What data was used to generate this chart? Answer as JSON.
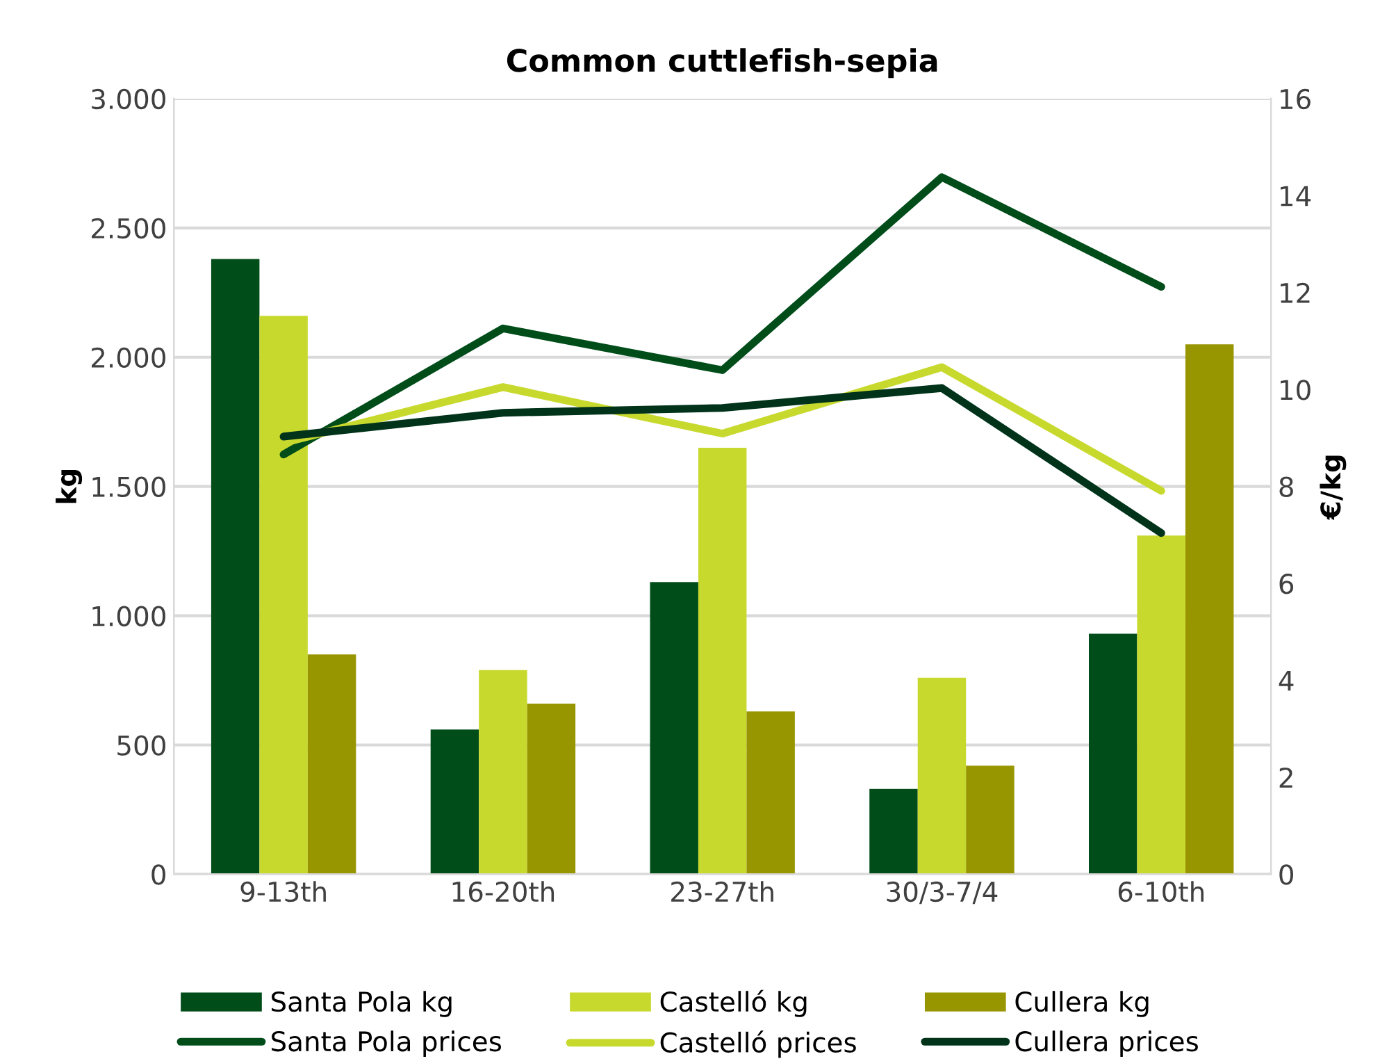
{
  "chart_data": {
    "type": "bar",
    "title": "Common cuttlefish-sepia",
    "ylabel": "kg",
    "y2label": "€/kg",
    "categories": [
      "9-13th",
      "16-20th",
      "23-27th",
      "30/3-7/4",
      "6-10th"
    ],
    "series": [
      {
        "name": "Santa Pola kg",
        "color": "#004d1a",
        "values": [
          2380,
          560,
          1130,
          330,
          930
        ]
      },
      {
        "name": "Castelló kg",
        "color": "#c8d92e",
        "values": [
          2160,
          790,
          1650,
          760,
          1310
        ]
      },
      {
        "name": "Cullera kg",
        "color": "#989600",
        "values": [
          850,
          660,
          630,
          420,
          2050
        ]
      },
      {
        "name": "Santa Pola prices",
        "type": "line",
        "axis": "y2",
        "color": "#004d1a",
        "values": [
          8.66,
          11.26,
          10.4,
          14.38,
          12.12
        ]
      },
      {
        "name": "Castelló prices",
        "type": "line",
        "axis": "y2",
        "color": "#c8d92e",
        "values": [
          8.9,
          10.05,
          9.09,
          10.46,
          7.91
        ]
      },
      {
        "name": "Cullera prices",
        "type": "line",
        "axis": "y2",
        "color": "#00331a",
        "values": [
          9.03,
          9.52,
          9.62,
          10.03,
          7.04
        ]
      }
    ],
    "ylim": [
      0,
      3000
    ],
    "yticks": [
      {
        "value": 0,
        "label": "0"
      },
      {
        "value": 500,
        "label": "500"
      },
      {
        "value": 1000,
        "label": "1.000"
      },
      {
        "value": 1500,
        "label": "1.500"
      },
      {
        "value": 2000,
        "label": "2.000"
      },
      {
        "value": 2500,
        "label": "2.500"
      },
      {
        "value": 3000,
        "label": "3.000"
      }
    ],
    "y2lim": [
      0,
      16
    ],
    "y2ticks": [
      0,
      2,
      4,
      6,
      8,
      10,
      12,
      14,
      16
    ],
    "grid": "y",
    "legend": "bottom",
    "line_style": "solid",
    "marker": "none"
  }
}
